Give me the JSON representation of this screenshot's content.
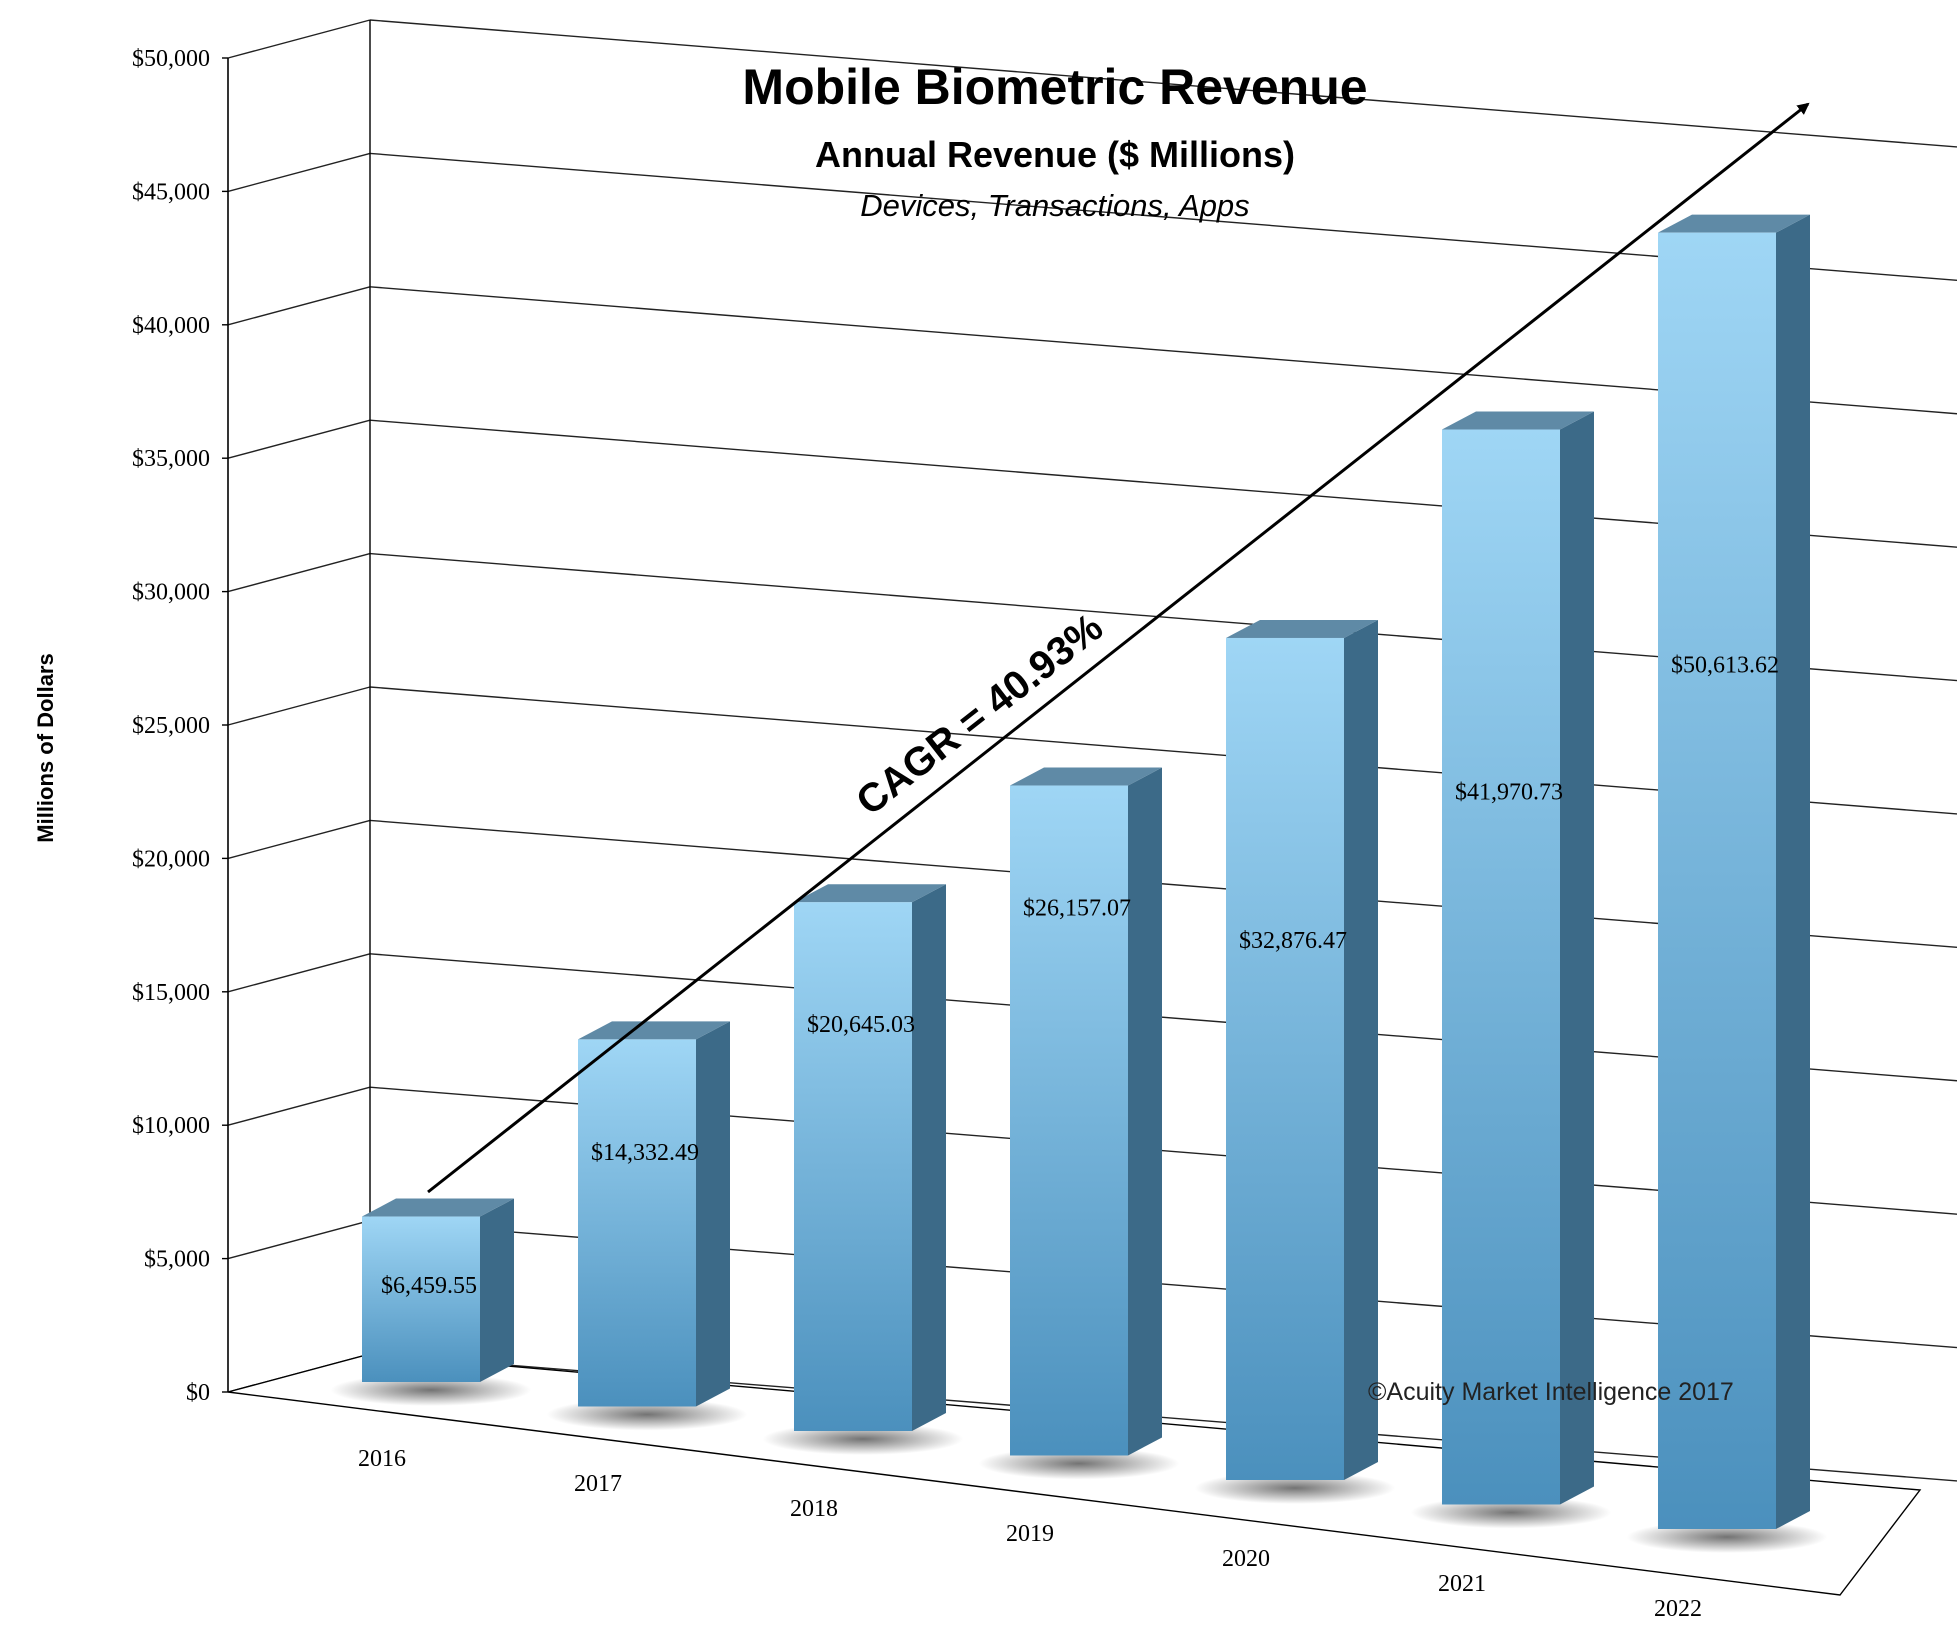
{
  "chart_data": {
    "type": "bar",
    "title": "Mobile Biometric Revenue",
    "subtitle": "Annual Revenue ($ Millions)",
    "subtitle2": "Devices, Transactions, Apps",
    "ylabel": "Millions of Dollars",
    "xlabel": "",
    "categories": [
      "2016",
      "2017",
      "2018",
      "2019",
      "2020",
      "2021",
      "2022"
    ],
    "values": [
      6459.55,
      14332.49,
      20645.03,
      26157.07,
      32876.47,
      41970.73,
      50613.62
    ],
    "value_labels": [
      "$6,459.55",
      "$14,332.49",
      "$20,645.03",
      "$26,157.07",
      "$32,876.47",
      "$41,970.73",
      "$50,613.62"
    ],
    "ylim": [
      0,
      50000
    ],
    "yticks": [
      "$0",
      "$5,000",
      "$10,000",
      "$15,000",
      "$20,000",
      "$25,000",
      "$30,000",
      "$35,000",
      "$40,000",
      "$45,000",
      "$50,000"
    ],
    "grid": true,
    "annotation": "CAGR = 40.93%",
    "copyright": "©Acuity Market Intelligence 2017",
    "style": "3d",
    "colors": {
      "bar_front_top": "#9fd6f5",
      "bar_front_bottom": "#4b90bd",
      "bar_side": "#3c6a88",
      "bar_top": "#5f8aa6",
      "grid": "#222222"
    }
  }
}
